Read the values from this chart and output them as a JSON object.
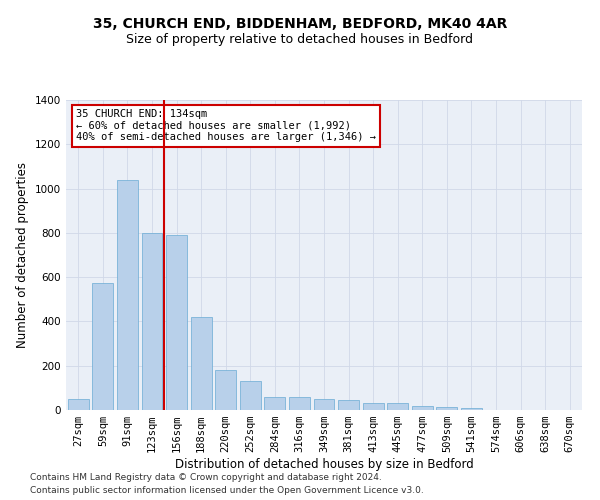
{
  "title1": "35, CHURCH END, BIDDENHAM, BEDFORD, MK40 4AR",
  "title2": "Size of property relative to detached houses in Bedford",
  "xlabel": "Distribution of detached houses by size in Bedford",
  "ylabel": "Number of detached properties",
  "categories": [
    "27sqm",
    "59sqm",
    "91sqm",
    "123sqm",
    "156sqm",
    "188sqm",
    "220sqm",
    "252sqm",
    "284sqm",
    "316sqm",
    "349sqm",
    "381sqm",
    "413sqm",
    "445sqm",
    "477sqm",
    "509sqm",
    "541sqm",
    "574sqm",
    "606sqm",
    "638sqm",
    "670sqm"
  ],
  "values": [
    50,
    575,
    1040,
    800,
    790,
    420,
    180,
    130,
    60,
    60,
    50,
    45,
    30,
    30,
    20,
    15,
    10,
    0,
    0,
    0,
    0
  ],
  "bar_color": "#b8d0ea",
  "bar_edge_color": "#6aaad4",
  "vline_x": 3.5,
  "vline_color": "#cc0000",
  "annotation_box_text": "35 CHURCH END: 134sqm\n← 60% of detached houses are smaller (1,992)\n40% of semi-detached houses are larger (1,346) →",
  "annotation_box_color": "#ffffff",
  "annotation_box_edge_color": "#cc0000",
  "ylim": [
    0,
    1400
  ],
  "yticks": [
    0,
    200,
    400,
    600,
    800,
    1000,
    1200,
    1400
  ],
  "grid_color": "#d0d8e8",
  "bg_color": "#eaeff7",
  "footer_line1": "Contains HM Land Registry data © Crown copyright and database right 2024.",
  "footer_line2": "Contains public sector information licensed under the Open Government Licence v3.0.",
  "title1_fontsize": 10,
  "title2_fontsize": 9,
  "xlabel_fontsize": 8.5,
  "ylabel_fontsize": 8.5,
  "tick_fontsize": 7.5,
  "footer_fontsize": 6.5
}
